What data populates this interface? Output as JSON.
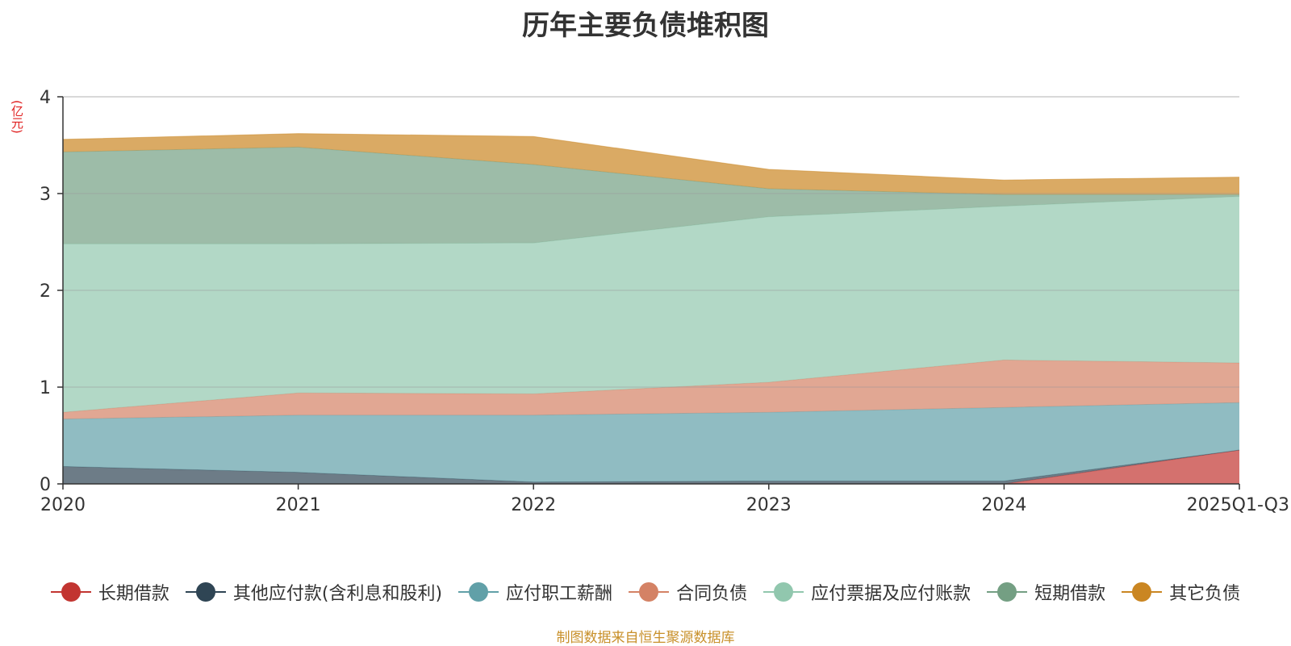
{
  "chart_data": {
    "type": "area",
    "stacked": true,
    "title": "历年主要负债堆积图",
    "ylabel": "(亿元)",
    "xlabel": "",
    "categories": [
      "2020",
      "2021",
      "2022",
      "2023",
      "2024",
      "2025Q1-Q3"
    ],
    "ylim": [
      0,
      4
    ],
    "yticks": [
      0,
      1,
      2,
      3,
      4
    ],
    "grid": true,
    "legend_position": "bottom",
    "series": [
      {
        "name": "长期借款",
        "color": "#c23531",
        "values": [
          0,
          0,
          0,
          0,
          0,
          0.35
        ]
      },
      {
        "name": "其他应付款(含利息和股利)",
        "color": "#2f4554",
        "values": [
          0.18,
          0.12,
          0.02,
          0.03,
          0.03,
          0.0
        ]
      },
      {
        "name": "应付职工薪酬",
        "color": "#61a0a8",
        "values": [
          0.49,
          0.59,
          0.69,
          0.71,
          0.76,
          0.49
        ]
      },
      {
        "name": "合同负债",
        "color": "#d48265",
        "values": [
          0.07,
          0.23,
          0.22,
          0.31,
          0.49,
          0.41
        ]
      },
      {
        "name": "应付票据及应付账款",
        "color": "#91c7ae",
        "values": [
          1.74,
          1.54,
          1.56,
          1.71,
          1.59,
          1.72
        ]
      },
      {
        "name": "短期借款",
        "color": "#749f83",
        "values": [
          0.95,
          1.0,
          0.81,
          0.29,
          0.12,
          0.02
        ]
      },
      {
        "name": "其它负债",
        "color": "#ca8622",
        "values": [
          0.13,
          0.14,
          0.29,
          0.2,
          0.15,
          0.18
        ]
      }
    ]
  },
  "source_text": "制图数据来自恒生聚源数据库"
}
